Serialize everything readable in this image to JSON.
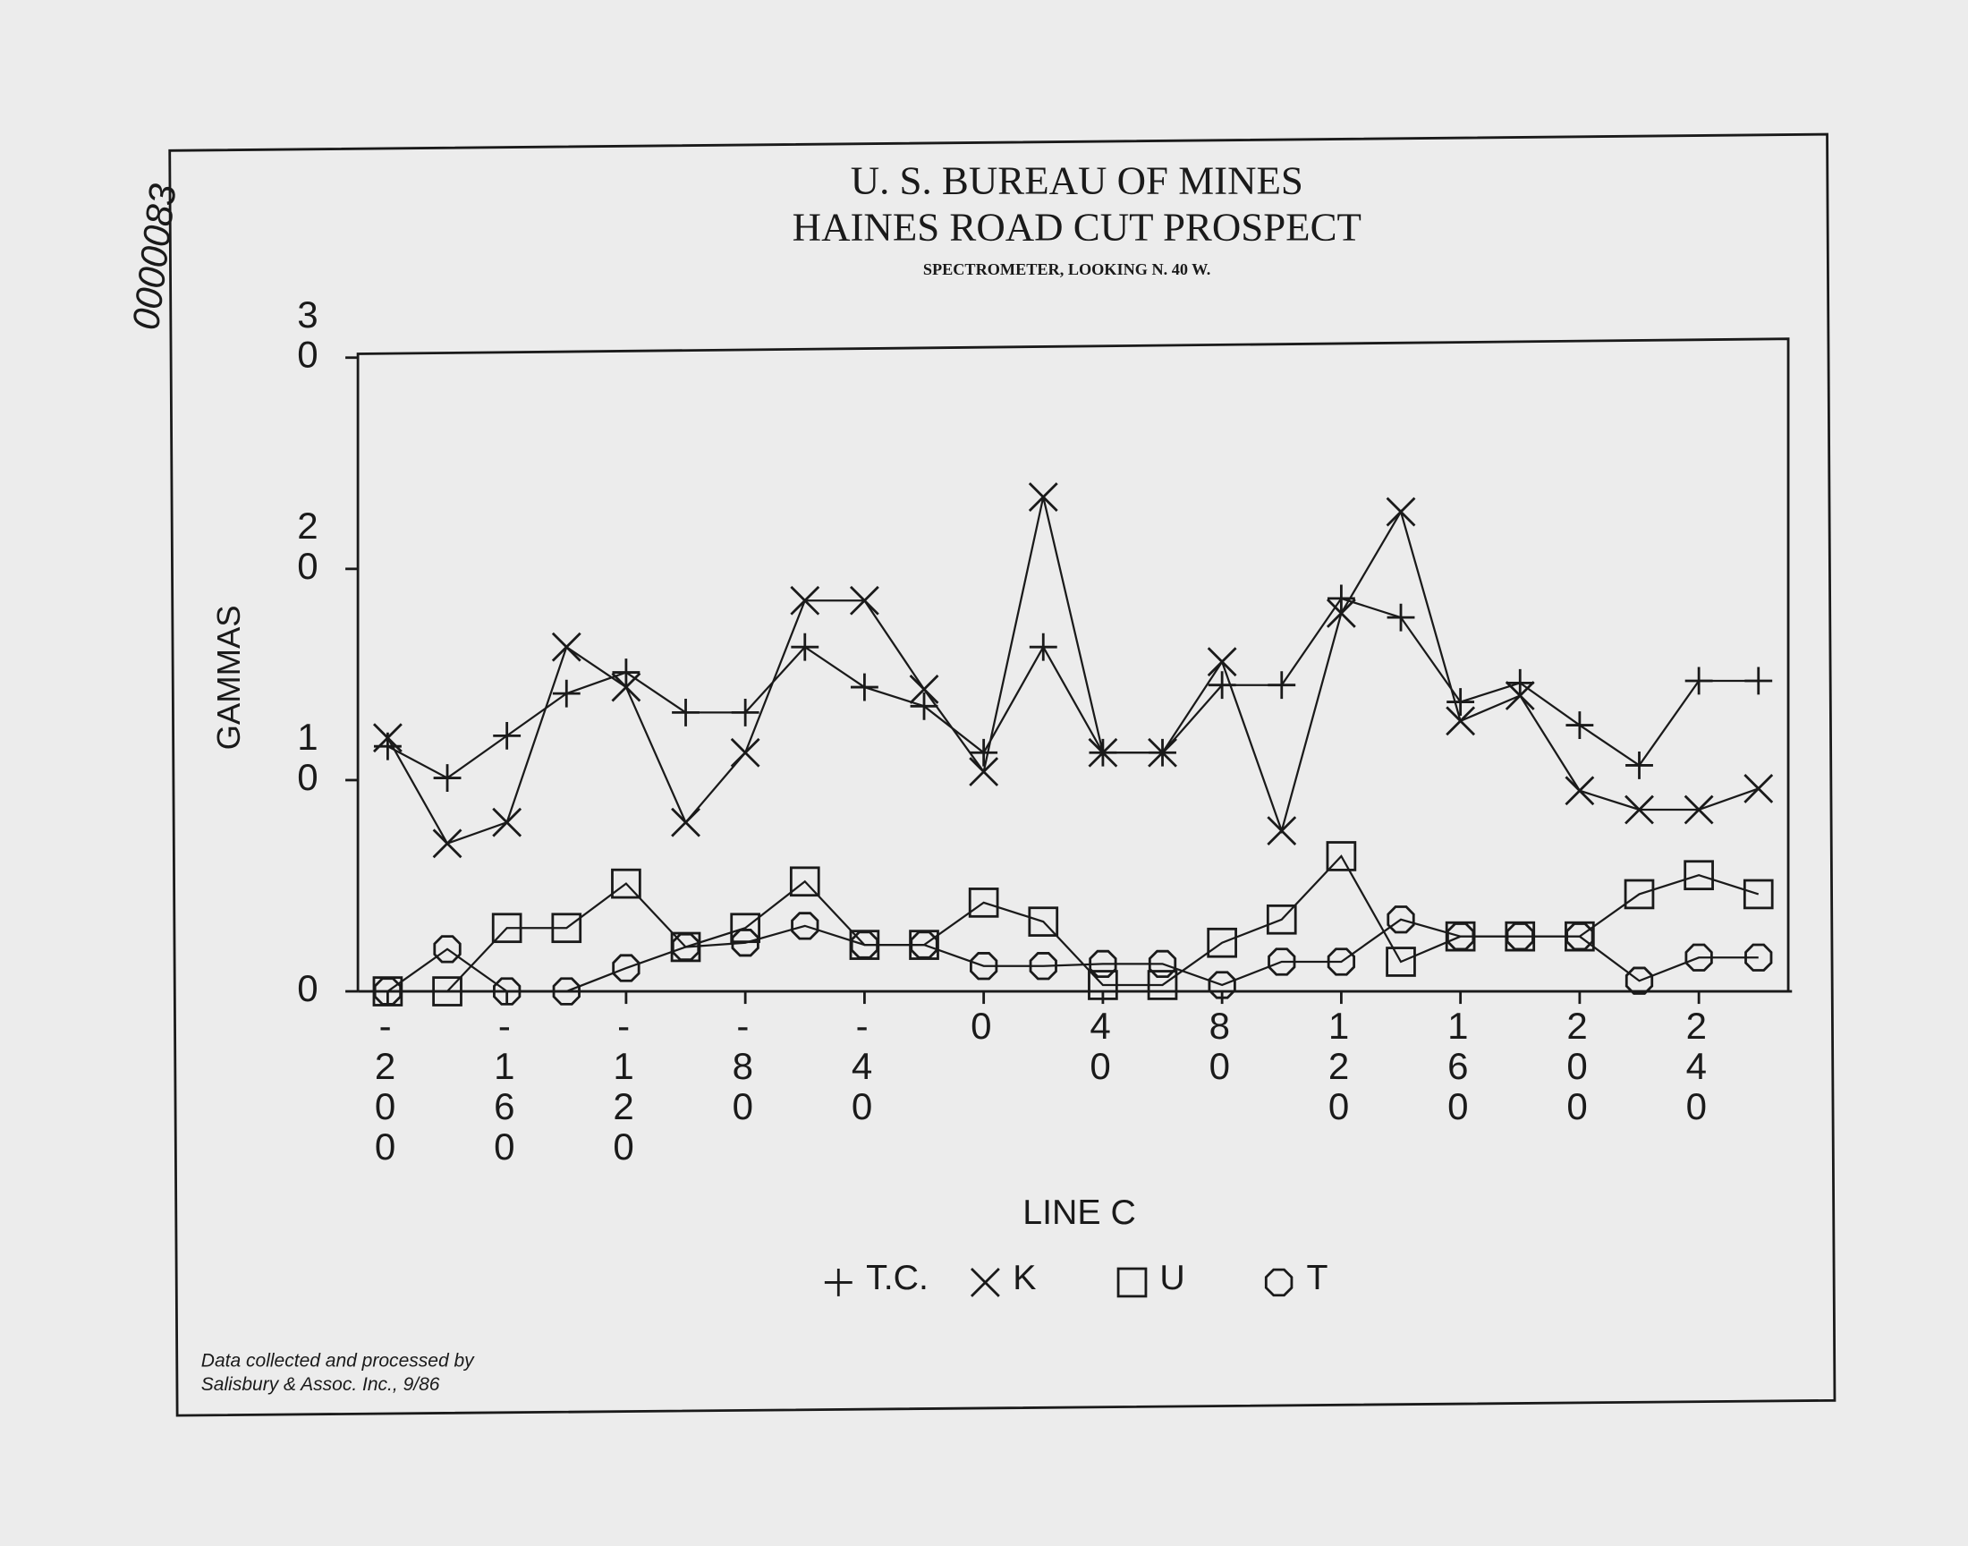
{
  "stamp": "0000083",
  "chart_data": {
    "type": "line",
    "title": "U. S. BUREAU OF MINES",
    "subtitle": "HAINES ROAD CUT PROSPECT",
    "caption": "SPECTROMETER, LOOKING N. 40 W.",
    "y_label": "GAMMAS",
    "x_label": "LINE C",
    "footnote": [
      "Data collected and processed by",
      "Salisbury & Assoc. Inc., 9/86"
    ],
    "x": [
      -200,
      -180,
      -160,
      -140,
      -120,
      -100,
      -80,
      -60,
      -40,
      -20,
      0,
      20,
      40,
      60,
      80,
      100,
      120,
      140,
      160,
      180,
      200,
      220,
      240,
      260
    ],
    "xlim": [
      -210,
      270
    ],
    "xticks": [
      -200,
      -160,
      -120,
      -80,
      -40,
      0,
      40,
      80,
      120,
      160,
      200,
      240
    ],
    "ylim": [
      0,
      30
    ],
    "yticks": [
      0,
      10,
      20,
      30
    ],
    "series": [
      {
        "name": "T.C.",
        "color": "#1a1a1a",
        "marker": "plus",
        "values": [
          11.6,
          10.1,
          12.1,
          14.1,
          15.1,
          13.2,
          13.2,
          16.3,
          14.4,
          13.5,
          11.3,
          16.3,
          11.3,
          11.3,
          14.5,
          14.5,
          18.6,
          17.7,
          13.7,
          14.6,
          12.6,
          10.7,
          14.7,
          14.7
        ]
      },
      {
        "name": "K",
        "color": "#1a1a1a",
        "marker": "x",
        "values": [
          12.0,
          7.0,
          8.0,
          16.3,
          14.4,
          8.0,
          11.3,
          18.5,
          18.5,
          14.3,
          10.4,
          23.4,
          11.3,
          11.3,
          15.6,
          7.6,
          17.9,
          22.7,
          12.8,
          14.0,
          9.5,
          8.6,
          8.6,
          9.6
        ]
      },
      {
        "name": "U",
        "color": "#1a1a1a",
        "marker": "square",
        "values": [
          0,
          0,
          3.0,
          3.0,
          5.1,
          2.1,
          3.0,
          5.2,
          2.2,
          2.2,
          4.2,
          3.3,
          0.3,
          0.3,
          2.3,
          3.4,
          6.4,
          1.4,
          2.6,
          2.6,
          2.6,
          4.6,
          5.5,
          4.6
        ]
      },
      {
        "name": "T",
        "color": "#1a1a1a",
        "marker": "circle",
        "values": [
          0,
          2.0,
          0,
          0,
          1.1,
          2.1,
          2.3,
          3.1,
          2.2,
          2.2,
          1.2,
          1.2,
          1.3,
          1.3,
          0.3,
          1.4,
          1.4,
          3.4,
          2.6,
          2.6,
          2.6,
          0.5,
          1.6,
          1.6
        ]
      }
    ]
  }
}
